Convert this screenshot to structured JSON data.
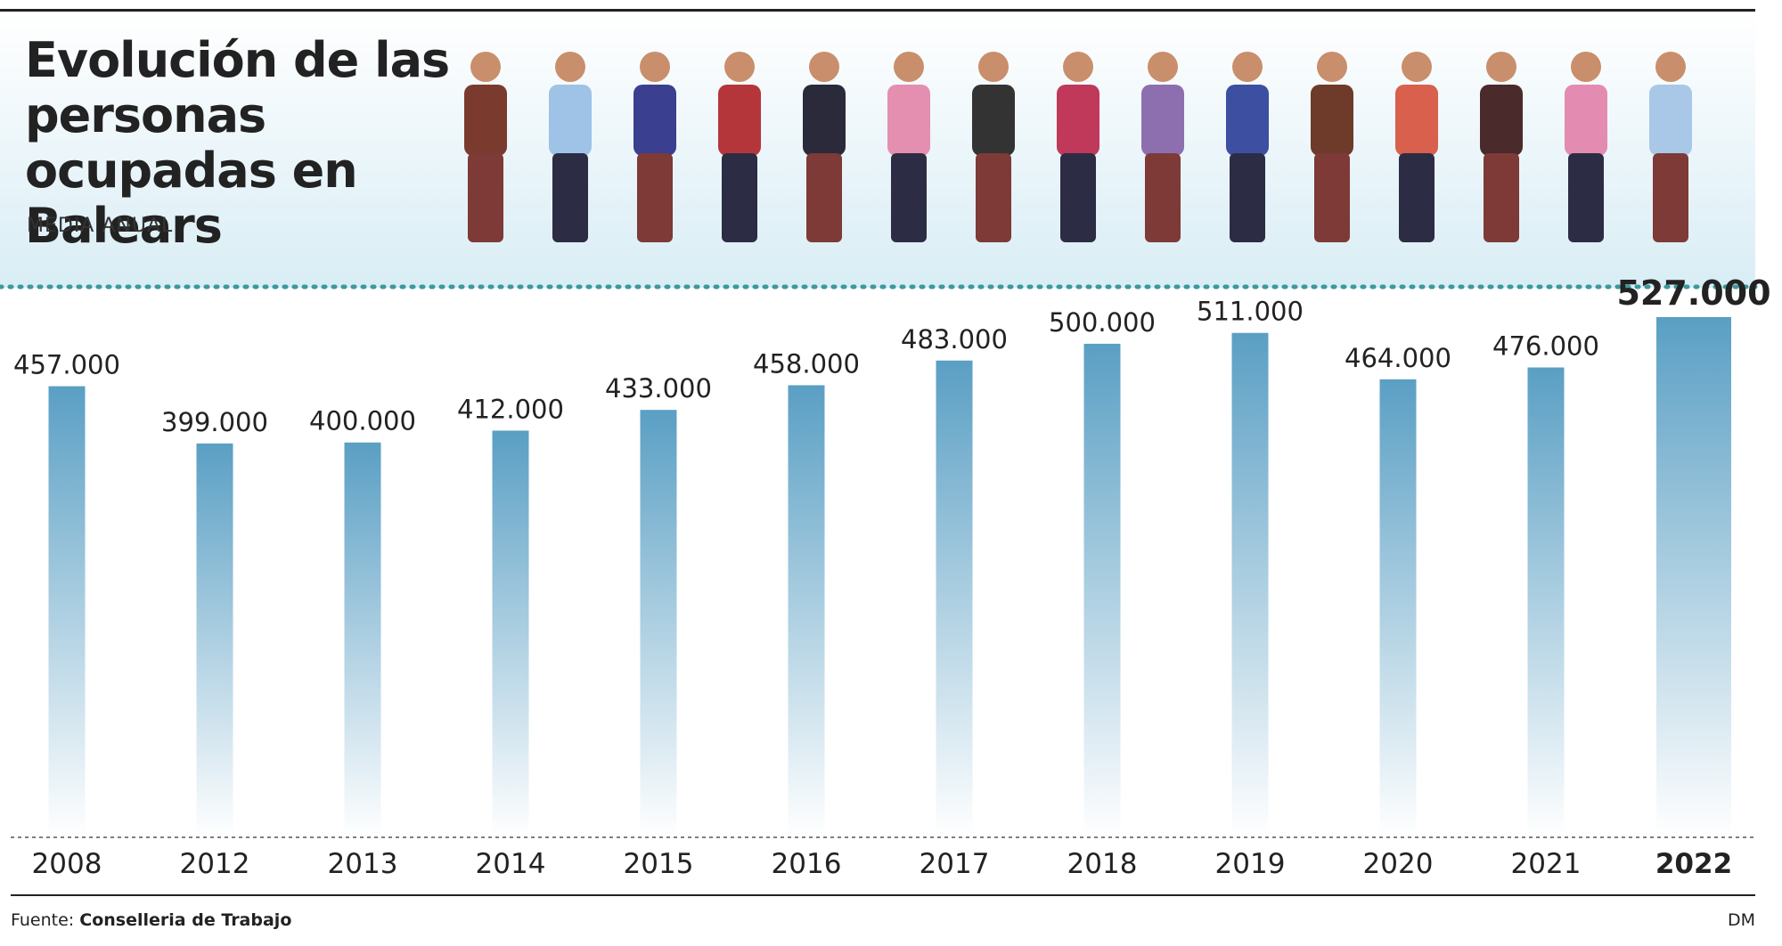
{
  "chart_data": {
    "type": "bar",
    "title": "Evolución de las personas ocupadas en Balears",
    "subtitle": "MEDIA ANUAL",
    "source_label": "Fuente:",
    "source": "Conselleria de Trabajo",
    "credit": "DM",
    "categories": [
      "2008",
      "2012",
      "2013",
      "2014",
      "2015",
      "2016",
      "2017",
      "2018",
      "2019",
      "2020",
      "2021",
      "2022"
    ],
    "values": [
      457000,
      399000,
      400000,
      412000,
      433000,
      458000,
      483000,
      500000,
      511000,
      464000,
      476000,
      527000
    ],
    "value_labels": [
      "457.000",
      "399.000",
      "400.000",
      "412.000",
      "433.000",
      "458.000",
      "483.000",
      "500.000",
      "511.000",
      "464.000",
      "476.000",
      "527.000"
    ],
    "color": "#5a9fc4",
    "ylim": [
      0,
      527000
    ]
  }
}
